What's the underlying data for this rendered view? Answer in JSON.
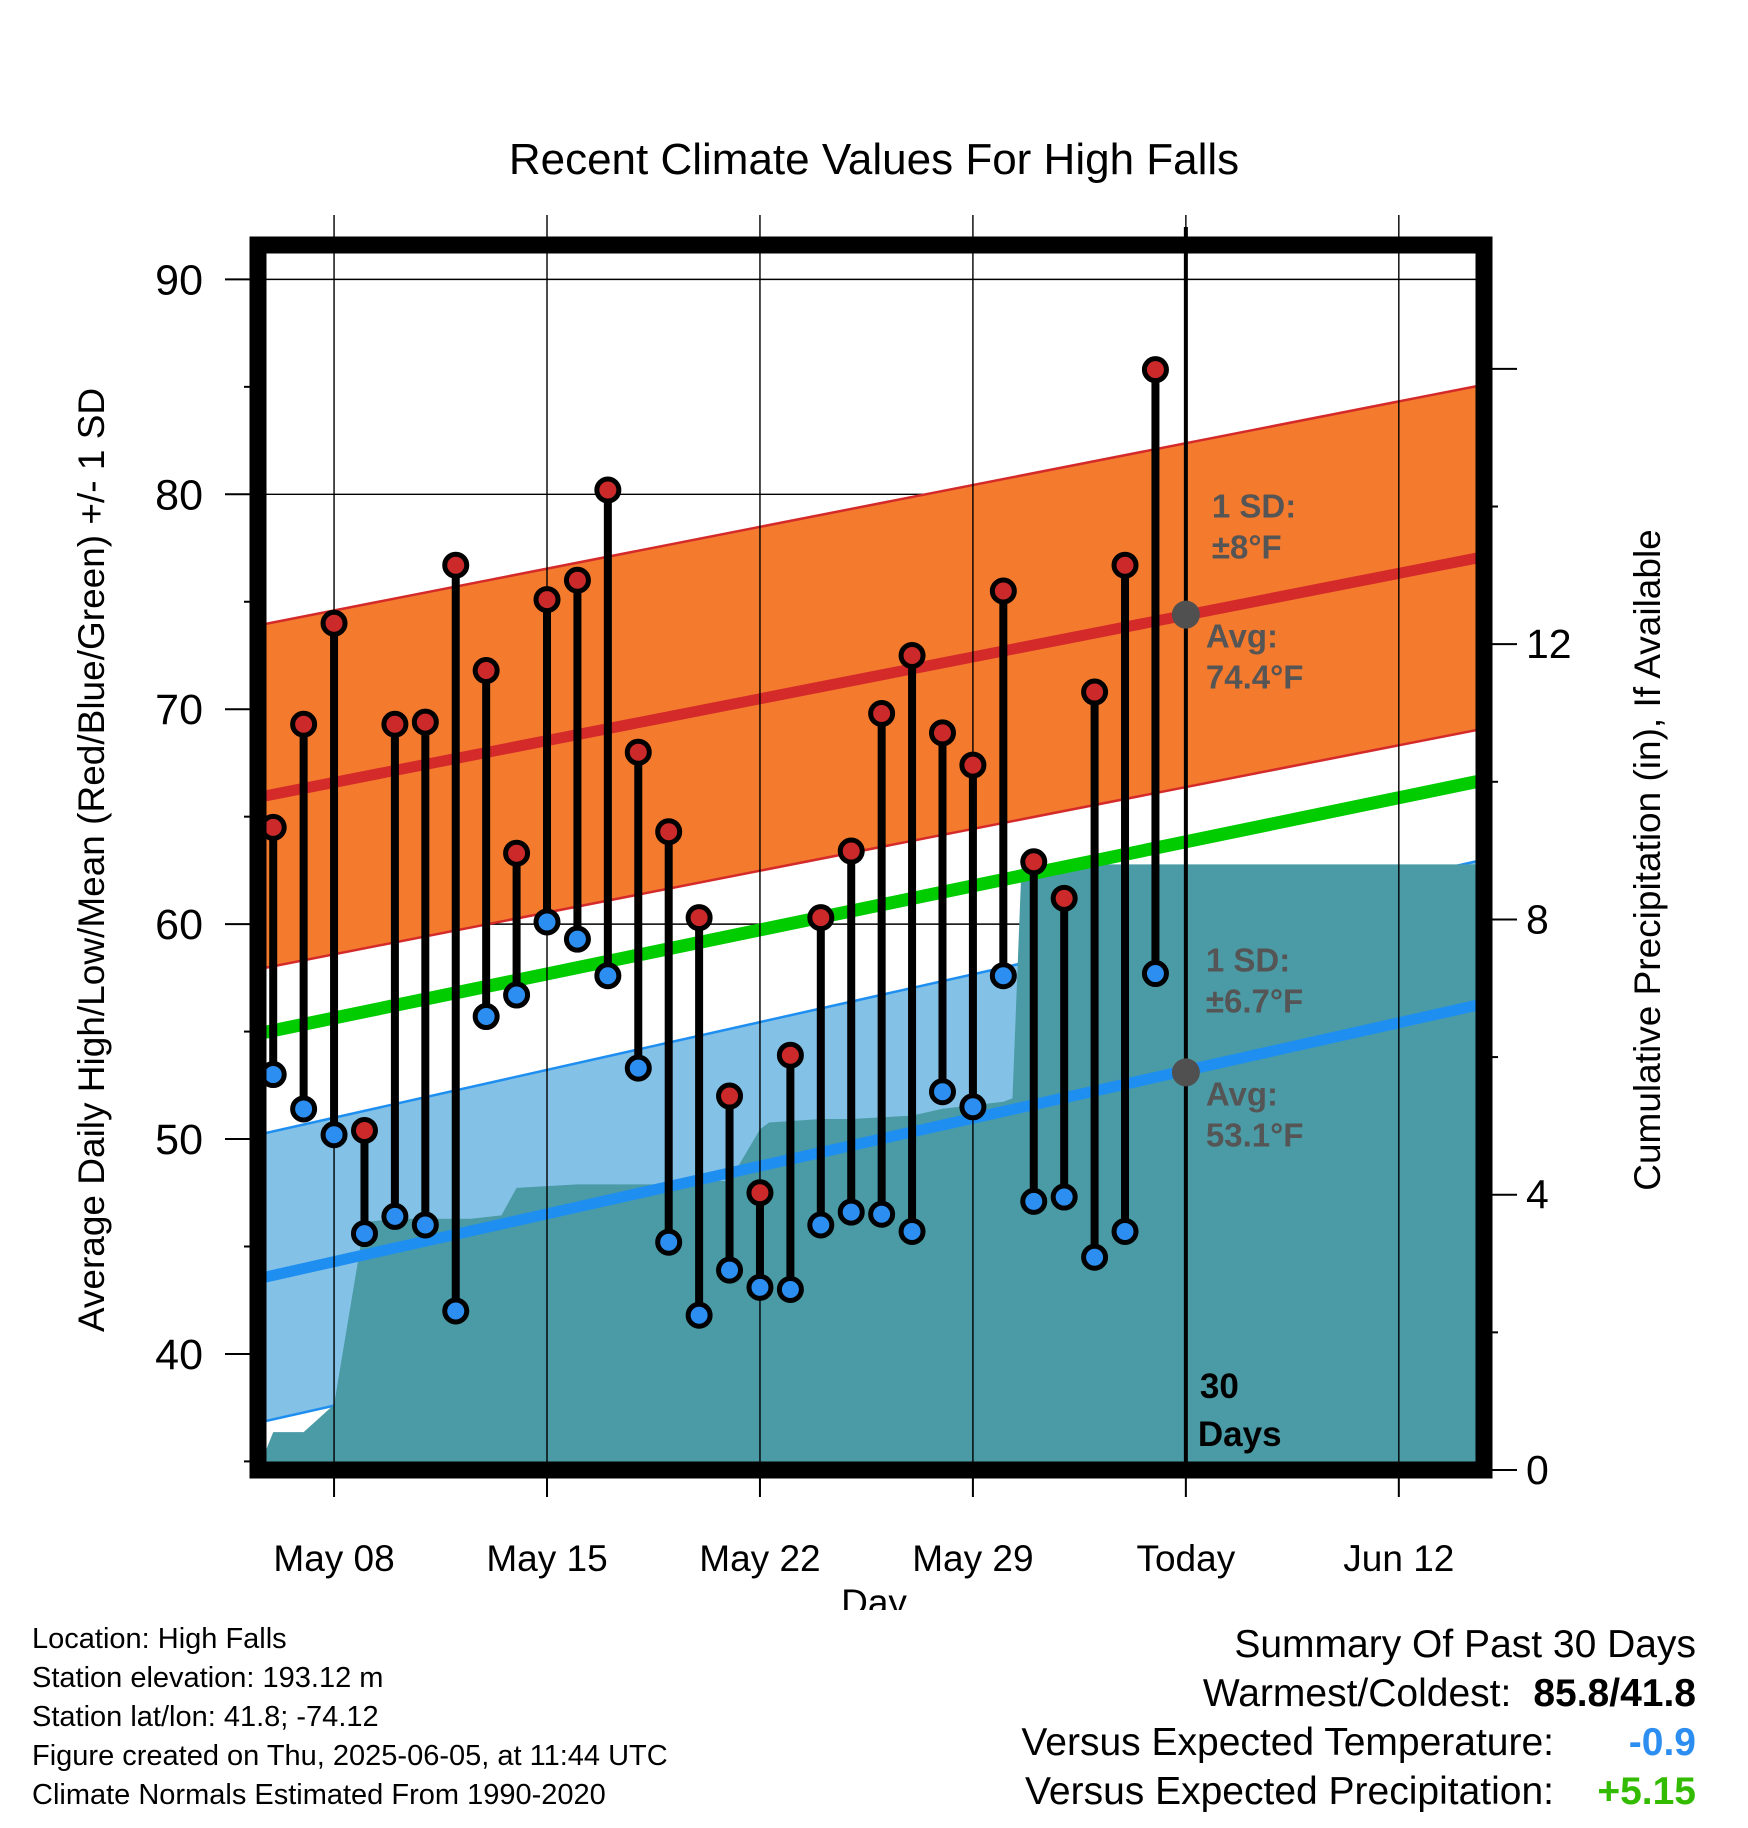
{
  "chart_data": {
    "type": "line",
    "title": "Recent Climate Values For High Falls",
    "xlabel": "Day",
    "ylabel": "Average Daily High/Low/Mean (Red/Blue/Green) +/- 1 SD",
    "ylabel_right": "Cumulative Precipitation (in), If Available",
    "x_tick_labels": [
      "May 08",
      "May 15",
      "May 22",
      "May 29",
      "Today",
      "Jun 12"
    ],
    "x_tick_days": [
      8,
      15,
      22,
      29,
      36,
      43
    ],
    "xlim": [
      5.5,
      45.8
    ],
    "ylim": [
      34.6,
      91.6
    ],
    "y_ticks": [
      40,
      50,
      60,
      70,
      80,
      90
    ],
    "y2lim": [
      0,
      17.8
    ],
    "y2_ticks": [
      0,
      4,
      8,
      12
    ],
    "today_day": 36,
    "days": [
      6,
      7,
      8,
      9,
      10,
      11,
      12,
      13,
      14,
      15,
      16,
      17,
      18,
      19,
      20,
      21,
      22,
      23,
      24,
      25,
      26,
      27,
      28,
      29,
      30,
      31,
      32,
      33,
      34,
      35
    ],
    "highs": [
      64.5,
      69.3,
      74.0,
      50.4,
      69.3,
      69.4,
      76.7,
      71.8,
      63.3,
      75.1,
      76.0,
      80.2,
      68.0,
      64.3,
      60.3,
      52.0,
      47.5,
      53.9,
      60.3,
      63.4,
      69.8,
      72.5,
      68.9,
      67.4,
      75.5,
      62.9,
      61.2,
      70.8,
      76.7,
      85.8
    ],
    "lows": [
      53.0,
      51.4,
      50.2,
      45.6,
      46.4,
      46.0,
      42.0,
      55.7,
      56.7,
      60.1,
      59.3,
      57.6,
      53.3,
      45.2,
      41.8,
      43.9,
      43.1,
      43.0,
      46.0,
      46.6,
      46.5,
      45.7,
      52.2,
      51.5,
      57.6,
      47.1,
      47.3,
      44.5,
      45.7,
      57.7
    ],
    "normal_high": {
      "start": 65.9,
      "end": 77.1,
      "sd": 8.0
    },
    "normal_low": {
      "start": 43.5,
      "end": 56.3,
      "sd": 6.7
    },
    "normal_mean": {
      "start": 54.9,
      "end": 66.7
    },
    "precip_x": [
      5.5,
      6.0,
      7.0,
      8.0,
      9.0,
      10.0,
      11.0,
      12.0,
      12.5,
      13.5,
      14.0,
      16.0,
      18.0,
      19.0,
      20.0,
      21.0,
      22.0,
      22.3,
      24.0,
      25.0,
      27.0,
      28.0,
      30.0,
      30.3,
      30.6,
      45.8
    ],
    "precip_y": [
      0,
      0.55,
      0.55,
      0.95,
      3.6,
      3.65,
      3.65,
      3.65,
      3.65,
      3.7,
      4.1,
      4.15,
      4.15,
      4.15,
      4.2,
      4.2,
      4.95,
      5.05,
      5.1,
      5.1,
      5.15,
      5.25,
      5.35,
      5.4,
      8.8,
      8.8
    ],
    "annotations": {
      "high_sd_label": "1 SD:",
      "high_sd_value": "±8°F",
      "high_avg_label": "Avg:",
      "high_avg_value": "74.4°F",
      "low_sd_label": "1 SD:",
      "low_sd_value": "±6.7°F",
      "low_avg_label": "Avg:",
      "low_avg_value": "53.1°F",
      "days_count": "30",
      "days_word": "Days",
      "high_avg": 74.4,
      "low_avg": 53.1
    },
    "colors": {
      "high_band": "#f47b2e",
      "high_line": "#d42a2a",
      "low_band": "#84c1e6",
      "low_line": "#1e8ff0",
      "mean_line": "#00cc00",
      "precip_fill": "#4a9ba6",
      "high_dot": "#cc2a2a",
      "low_dot": "#2b8ef0",
      "marker_gray": "#505050"
    }
  },
  "info": {
    "location": "Location: High Falls",
    "elevation": "Station elevation: 193.12 m",
    "latlon": "Station lat/lon: 41.8; -74.12",
    "created": "Figure created on Thu, 2025-06-05, at 11:44 UTC",
    "normals": "Climate Normals Estimated From 1990-2020"
  },
  "summary": {
    "title": "Summary Of Past 30 Days",
    "warm_cold_label": "Warmest/Coldest:",
    "warm_cold_value": "85.8/41.8",
    "temp_label": "Versus Expected Temperature:",
    "temp_value": "-0.9",
    "temp_color": "#2b8ef0",
    "precip_label": "Versus Expected Precipitation:",
    "precip_value": "+5.15",
    "precip_color": "#33bb00"
  }
}
